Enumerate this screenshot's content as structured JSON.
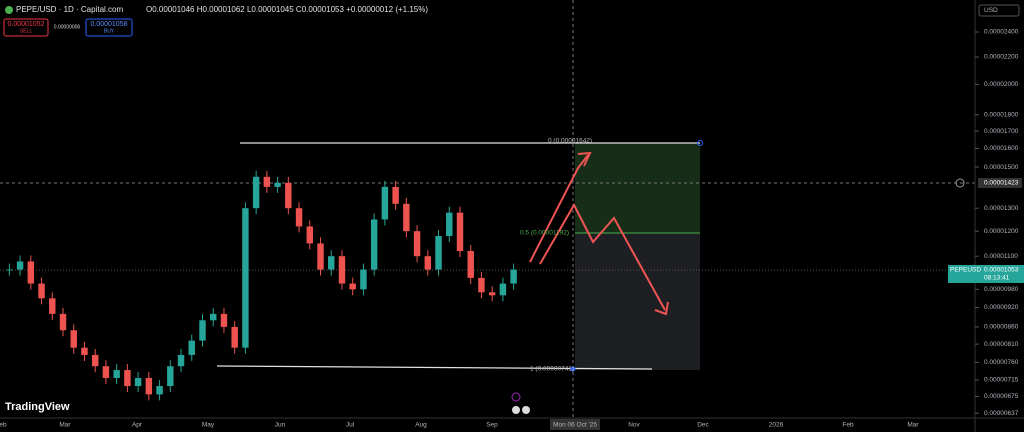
{
  "header": {
    "symbol": "PEPE/USD · 1D · Capital.com",
    "ohlc": "O0.00001046 H0.00001062 L0.00001045 C0.00001053 +0.00000012 (+1.15%)"
  },
  "orders": {
    "sell_price": "0.00001052",
    "sell": "SELL",
    "spread": "0.00000006",
    "buy_price": "0.00001058",
    "buy": "BUY"
  },
  "currency": "USD",
  "price_axis": {
    "log_scale": true,
    "ylim": [
      6.22e-06,
      2.683e-05
    ],
    "ticks": [
      {
        "value": 2.4e-05,
        "label": "0.00002400"
      },
      {
        "value": 2.2e-05,
        "label": "0.00002200"
      },
      {
        "value": 2e-05,
        "label": "0.00002000"
      },
      {
        "value": 1.8e-05,
        "label": "0.00001800"
      },
      {
        "value": 1.7e-05,
        "label": "0.00001700"
      },
      {
        "value": 1.6e-05,
        "label": "0.00001600"
      },
      {
        "value": 1.5e-05,
        "label": "0.00001500"
      },
      {
        "value": 1.3e-05,
        "label": "0.00001300"
      },
      {
        "value": 1.2e-05,
        "label": "0.00001200"
      },
      {
        "value": 1.1e-05,
        "label": "0.00001100"
      },
      {
        "value": 9.8e-06,
        "label": "0.00000980"
      },
      {
        "value": 9.2e-06,
        "label": "0.00000920"
      },
      {
        "value": 8.6e-06,
        "label": "0.00000860"
      },
      {
        "value": 8.1e-06,
        "label": "0.00000810"
      },
      {
        "value": 7.6e-06,
        "label": "0.00000760"
      },
      {
        "value": 7.15e-06,
        "label": "0.00000715"
      },
      {
        "value": 6.75e-06,
        "label": "0.00000675"
      },
      {
        "value": 6.37e-06,
        "label": "0.00000637"
      }
    ],
    "crosshair_price": "0.00001423",
    "last_symbol": "PEPEUSD",
    "last_price": "0.00001053",
    "countdown": "08:13:41"
  },
  "time_axis": {
    "labels": [
      "eb",
      "Mar",
      "Apr",
      "May",
      "Jun",
      "Jul",
      "Aug",
      "Sep",
      "Mon 06 Oct '25",
      "Nov",
      "Dec",
      "2026",
      "Feb",
      "Mar"
    ]
  },
  "fib": {
    "level_0": "0 (0.00001642)",
    "level_05": "0.5 (0.00001192)",
    "level_1": "1 (0.00000741)"
  },
  "price": {
    "color": "#26a69a",
    "values": [
      1.05e-05,
      1.08e-05,
      1e-05,
      9.5e-06,
      9e-06,
      8.5e-06,
      8e-06,
      7.8e-06,
      7.5e-06,
      7.2e-06,
      7.4e-06,
      7e-06,
      7.2e-06,
      6.8e-06,
      7e-06,
      7.5e-06,
      7.8e-06,
      8.2e-06,
      8.8e-06,
      9e-06,
      8.6e-06,
      8e-06,
      1.3e-05,
      1.45e-05,
      1.4e-05,
      1.42e-05,
      1.3e-05,
      1.22e-05,
      1.15e-05,
      1.05e-05,
      1.1e-05,
      1e-05,
      9.8e-06,
      1.05e-05,
      1.25e-05,
      1.4e-05,
      1.32e-05,
      1.2e-05,
      1.1e-05,
      1.05e-05,
      1.18e-05,
      1.28e-05,
      1.12e-05,
      1.02e-05,
      9.7e-06,
      9.6e-06,
      1e-05,
      1.05e-05
    ]
  },
  "brand": "TradingView"
}
